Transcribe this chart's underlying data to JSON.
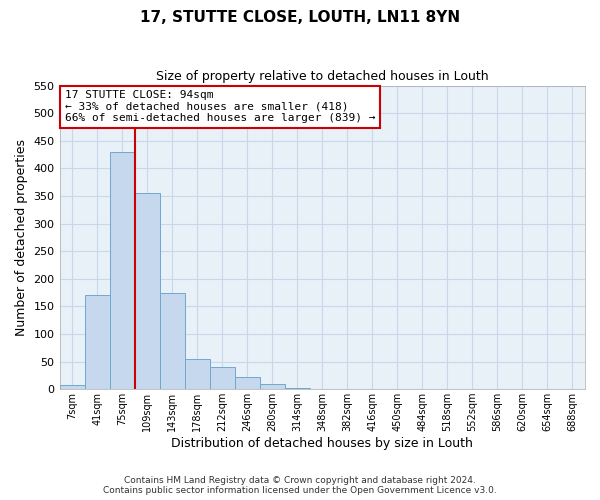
{
  "title": "17, STUTTE CLOSE, LOUTH, LN11 8YN",
  "subtitle": "Size of property relative to detached houses in Louth",
  "xlabel": "Distribution of detached houses by size in Louth",
  "ylabel": "Number of detached properties",
  "bar_labels": [
    "7sqm",
    "41sqm",
    "75sqm",
    "109sqm",
    "143sqm",
    "178sqm",
    "212sqm",
    "246sqm",
    "280sqm",
    "314sqm",
    "348sqm",
    "382sqm",
    "416sqm",
    "450sqm",
    "484sqm",
    "518sqm",
    "552sqm",
    "586sqm",
    "620sqm",
    "654sqm",
    "688sqm"
  ],
  "bar_values": [
    8,
    170,
    430,
    355,
    175,
    55,
    40,
    22,
    10,
    2,
    0,
    0,
    0,
    0,
    0,
    0,
    0,
    1,
    0,
    0,
    1
  ],
  "bar_color": "#c5d8ed",
  "bar_edge_color": "#6fa8d0",
  "vline_x": 2.5,
  "vline_color": "#cc0000",
  "ylim": [
    0,
    550
  ],
  "yticks": [
    0,
    50,
    100,
    150,
    200,
    250,
    300,
    350,
    400,
    450,
    500,
    550
  ],
  "annotation_title": "17 STUTTE CLOSE: 94sqm",
  "annotation_line1": "← 33% of detached houses are smaller (418)",
  "annotation_line2": "66% of semi-detached houses are larger (839) →",
  "annotation_box_color": "#ffffff",
  "annotation_box_edge": "#cc0000",
  "footer_line1": "Contains HM Land Registry data © Crown copyright and database right 2024.",
  "footer_line2": "Contains public sector information licensed under the Open Government Licence v3.0.",
  "bg_color": "#e8f0f8",
  "grid_color": "#c8d8e8"
}
